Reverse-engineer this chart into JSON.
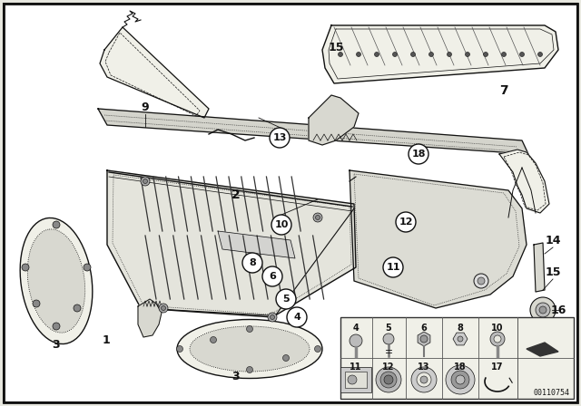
{
  "bg_color": "#e8e8e0",
  "line_color": "#111111",
  "fill_light": "#f0f0e8",
  "fill_mid": "#d8d8d0",
  "fill_dark": "#b8b8b0",
  "circle_bg": "#e8e8e0",
  "diagram_number": "00110754",
  "title_bg": "#c8c8c0"
}
